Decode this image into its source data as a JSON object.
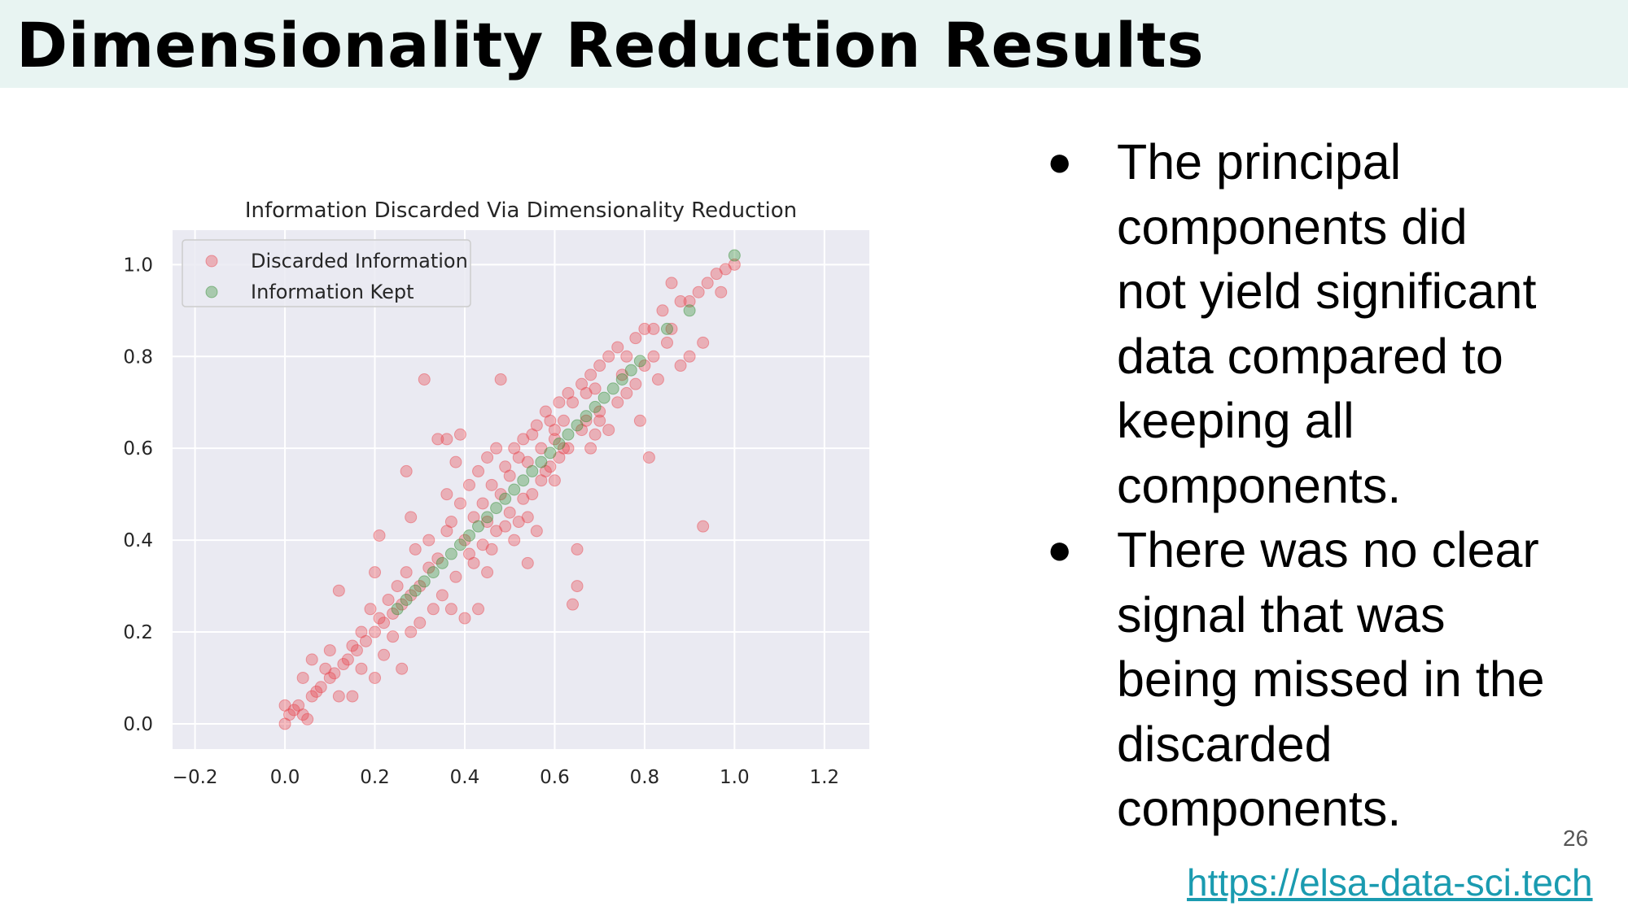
{
  "slide": {
    "title": "Dimensionality Reduction Results",
    "bullets": [
      "The principal components did not yield significant data compared to keeping all components.",
      "There was no clear signal that was being missed in the discarded components."
    ],
    "bullet_lines": [
      [
        "The principal",
        "components did",
        "not yield significant",
        "data compared to",
        "keeping all",
        "components."
      ],
      [
        "There was no clear",
        "signal that was",
        "being missed in the",
        "discarded",
        "components."
      ]
    ],
    "page_number": "26",
    "link": "https://elsa-data-sci.tech"
  },
  "colors": {
    "title_band": "#e8f4f2",
    "plot_background": "#eaeaf2",
    "discarded": "#e8414a",
    "kept": "#2e8b2e",
    "link": "#1a9bb0"
  },
  "chart_data": {
    "type": "scatter",
    "title": "Information Discarded Via Dimensionality Reduction",
    "xlabel": "",
    "ylabel": "",
    "xlim": [
      -0.25,
      1.3
    ],
    "ylim": [
      -0.055,
      1.075
    ],
    "xticks": [
      -0.2,
      0.0,
      0.2,
      0.4,
      0.6,
      0.8,
      1.0,
      1.2
    ],
    "xtick_labels": [
      "−0.2",
      "0.0",
      "0.2",
      "0.4",
      "0.6",
      "0.8",
      "1.0",
      "1.2"
    ],
    "yticks": [
      0.0,
      0.2,
      0.4,
      0.6,
      0.8,
      1.0
    ],
    "ytick_labels": [
      "0.0",
      "0.2",
      "0.4",
      "0.6",
      "0.8",
      "1.0"
    ],
    "grid": true,
    "legend": "top-left",
    "series": [
      {
        "name": "Discarded Information",
        "color": "#e8414a",
        "opacity": 0.35,
        "points": [
          [
            0.0,
            0.0
          ],
          [
            0.0,
            0.04
          ],
          [
            0.01,
            0.02
          ],
          [
            0.02,
            0.03
          ],
          [
            0.03,
            0.04
          ],
          [
            0.04,
            0.02
          ],
          [
            0.05,
            0.01
          ],
          [
            0.04,
            0.1
          ],
          [
            0.06,
            0.06
          ],
          [
            0.06,
            0.14
          ],
          [
            0.07,
            0.07
          ],
          [
            0.08,
            0.08
          ],
          [
            0.09,
            0.12
          ],
          [
            0.1,
            0.1
          ],
          [
            0.1,
            0.16
          ],
          [
            0.11,
            0.11
          ],
          [
            0.12,
            0.06
          ],
          [
            0.12,
            0.29
          ],
          [
            0.13,
            0.13
          ],
          [
            0.14,
            0.14
          ],
          [
            0.15,
            0.17
          ],
          [
            0.15,
            0.06
          ],
          [
            0.16,
            0.16
          ],
          [
            0.17,
            0.2
          ],
          [
            0.17,
            0.12
          ],
          [
            0.18,
            0.18
          ],
          [
            0.19,
            0.25
          ],
          [
            0.2,
            0.2
          ],
          [
            0.2,
            0.1
          ],
          [
            0.21,
            0.41
          ],
          [
            0.21,
            0.23
          ],
          [
            0.22,
            0.22
          ],
          [
            0.22,
            0.15
          ],
          [
            0.23,
            0.27
          ],
          [
            0.24,
            0.24
          ],
          [
            0.24,
            0.19
          ],
          [
            0.25,
            0.3
          ],
          [
            0.26,
            0.26
          ],
          [
            0.26,
            0.12
          ],
          [
            0.27,
            0.33
          ],
          [
            0.28,
            0.28
          ],
          [
            0.28,
            0.2
          ],
          [
            0.29,
            0.38
          ],
          [
            0.3,
            0.3
          ],
          [
            0.3,
            0.22
          ],
          [
            0.27,
            0.55
          ],
          [
            0.28,
            0.45
          ],
          [
            0.31,
            0.75
          ],
          [
            0.32,
            0.34
          ],
          [
            0.32,
            0.4
          ],
          [
            0.33,
            0.25
          ],
          [
            0.34,
            0.36
          ],
          [
            0.34,
            0.62
          ],
          [
            0.35,
            0.28
          ],
          [
            0.36,
            0.42
          ],
          [
            0.36,
            0.62
          ],
          [
            0.37,
            0.44
          ],
          [
            0.37,
            0.25
          ],
          [
            0.38,
            0.32
          ],
          [
            0.38,
            0.57
          ],
          [
            0.39,
            0.48
          ],
          [
            0.39,
            0.63
          ],
          [
            0.4,
            0.4
          ],
          [
            0.4,
            0.23
          ],
          [
            0.41,
            0.52
          ],
          [
            0.41,
            0.37
          ],
          [
            0.42,
            0.45
          ],
          [
            0.42,
            0.35
          ],
          [
            0.43,
            0.55
          ],
          [
            0.43,
            0.25
          ],
          [
            0.44,
            0.48
          ],
          [
            0.44,
            0.39
          ],
          [
            0.45,
            0.58
          ],
          [
            0.45,
            0.44
          ],
          [
            0.46,
            0.52
          ],
          [
            0.46,
            0.38
          ],
          [
            0.47,
            0.6
          ],
          [
            0.47,
            0.42
          ],
          [
            0.48,
            0.5
          ],
          [
            0.48,
            0.75
          ],
          [
            0.49,
            0.56
          ],
          [
            0.49,
            0.43
          ],
          [
            0.5,
            0.54
          ],
          [
            0.5,
            0.46
          ],
          [
            0.51,
            0.6
          ],
          [
            0.51,
            0.4
          ],
          [
            0.52,
            0.58
          ],
          [
            0.52,
            0.44
          ],
          [
            0.53,
            0.62
          ],
          [
            0.53,
            0.49
          ],
          [
            0.54,
            0.57
          ],
          [
            0.54,
            0.35
          ],
          [
            0.55,
            0.63
          ],
          [
            0.55,
            0.5
          ],
          [
            0.56,
            0.65
          ],
          [
            0.56,
            0.42
          ],
          [
            0.57,
            0.6
          ],
          [
            0.57,
            0.53
          ],
          [
            0.58,
            0.68
          ],
          [
            0.58,
            0.55
          ],
          [
            0.59,
            0.66
          ],
          [
            0.59,
            0.56
          ],
          [
            0.6,
            0.64
          ],
          [
            0.6,
            0.53
          ],
          [
            0.61,
            0.7
          ],
          [
            0.61,
            0.58
          ],
          [
            0.62,
            0.66
          ],
          [
            0.62,
            0.6
          ],
          [
            0.63,
            0.72
          ],
          [
            0.63,
            0.6
          ],
          [
            0.64,
            0.7
          ],
          [
            0.64,
            0.26
          ],
          [
            0.65,
            0.38
          ],
          [
            0.66,
            0.74
          ],
          [
            0.66,
            0.64
          ],
          [
            0.67,
            0.72
          ],
          [
            0.67,
            0.66
          ],
          [
            0.68,
            0.76
          ],
          [
            0.68,
            0.6
          ],
          [
            0.69,
            0.73
          ],
          [
            0.7,
            0.78
          ],
          [
            0.7,
            0.68
          ],
          [
            0.72,
            0.8
          ],
          [
            0.72,
            0.64
          ],
          [
            0.74,
            0.82
          ],
          [
            0.74,
            0.7
          ],
          [
            0.76,
            0.8
          ],
          [
            0.76,
            0.72
          ],
          [
            0.78,
            0.84
          ],
          [
            0.78,
            0.74
          ],
          [
            0.79,
            0.66
          ],
          [
            0.8,
            0.86
          ],
          [
            0.8,
            0.78
          ],
          [
            0.81,
            0.58
          ],
          [
            0.82,
            0.86
          ],
          [
            0.82,
            0.8
          ],
          [
            0.83,
            0.75
          ],
          [
            0.84,
            0.9
          ],
          [
            0.85,
            0.83
          ],
          [
            0.86,
            0.96
          ],
          [
            0.86,
            0.86
          ],
          [
            0.88,
            0.92
          ],
          [
            0.88,
            0.78
          ],
          [
            0.9,
            0.8
          ],
          [
            0.9,
            0.92
          ],
          [
            0.92,
            0.94
          ],
          [
            0.93,
            0.83
          ],
          [
            0.93,
            0.43
          ],
          [
            0.94,
            0.96
          ],
          [
            0.96,
            0.98
          ],
          [
            0.97,
            0.94
          ],
          [
            0.98,
            0.99
          ],
          [
            1.0,
            1.0
          ],
          [
            0.2,
            0.33
          ],
          [
            0.36,
            0.5
          ],
          [
            0.45,
            0.33
          ],
          [
            0.6,
            0.62
          ],
          [
            0.65,
            0.3
          ],
          [
            0.7,
            0.66
          ],
          [
            0.75,
            0.76
          ],
          [
            0.54,
            0.45
          ],
          [
            0.69,
            0.63
          ]
        ]
      },
      {
        "name": "Information Kept",
        "color": "#2e8b2e",
        "opacity": 0.35,
        "points": [
          [
            0.25,
            0.25
          ],
          [
            0.27,
            0.27
          ],
          [
            0.29,
            0.29
          ],
          [
            0.31,
            0.31
          ],
          [
            0.33,
            0.33
          ],
          [
            0.35,
            0.35
          ],
          [
            0.37,
            0.37
          ],
          [
            0.39,
            0.39
          ],
          [
            0.41,
            0.41
          ],
          [
            0.43,
            0.43
          ],
          [
            0.45,
            0.45
          ],
          [
            0.47,
            0.47
          ],
          [
            0.49,
            0.49
          ],
          [
            0.51,
            0.51
          ],
          [
            0.53,
            0.53
          ],
          [
            0.55,
            0.55
          ],
          [
            0.57,
            0.57
          ],
          [
            0.59,
            0.59
          ],
          [
            0.61,
            0.61
          ],
          [
            0.63,
            0.63
          ],
          [
            0.65,
            0.65
          ],
          [
            0.67,
            0.67
          ],
          [
            0.69,
            0.69
          ],
          [
            0.71,
            0.71
          ],
          [
            0.73,
            0.73
          ],
          [
            0.75,
            0.75
          ],
          [
            0.77,
            0.77
          ],
          [
            0.79,
            0.79
          ],
          [
            0.85,
            0.86
          ],
          [
            0.9,
            0.9
          ],
          [
            1.0,
            1.02
          ]
        ]
      }
    ]
  }
}
